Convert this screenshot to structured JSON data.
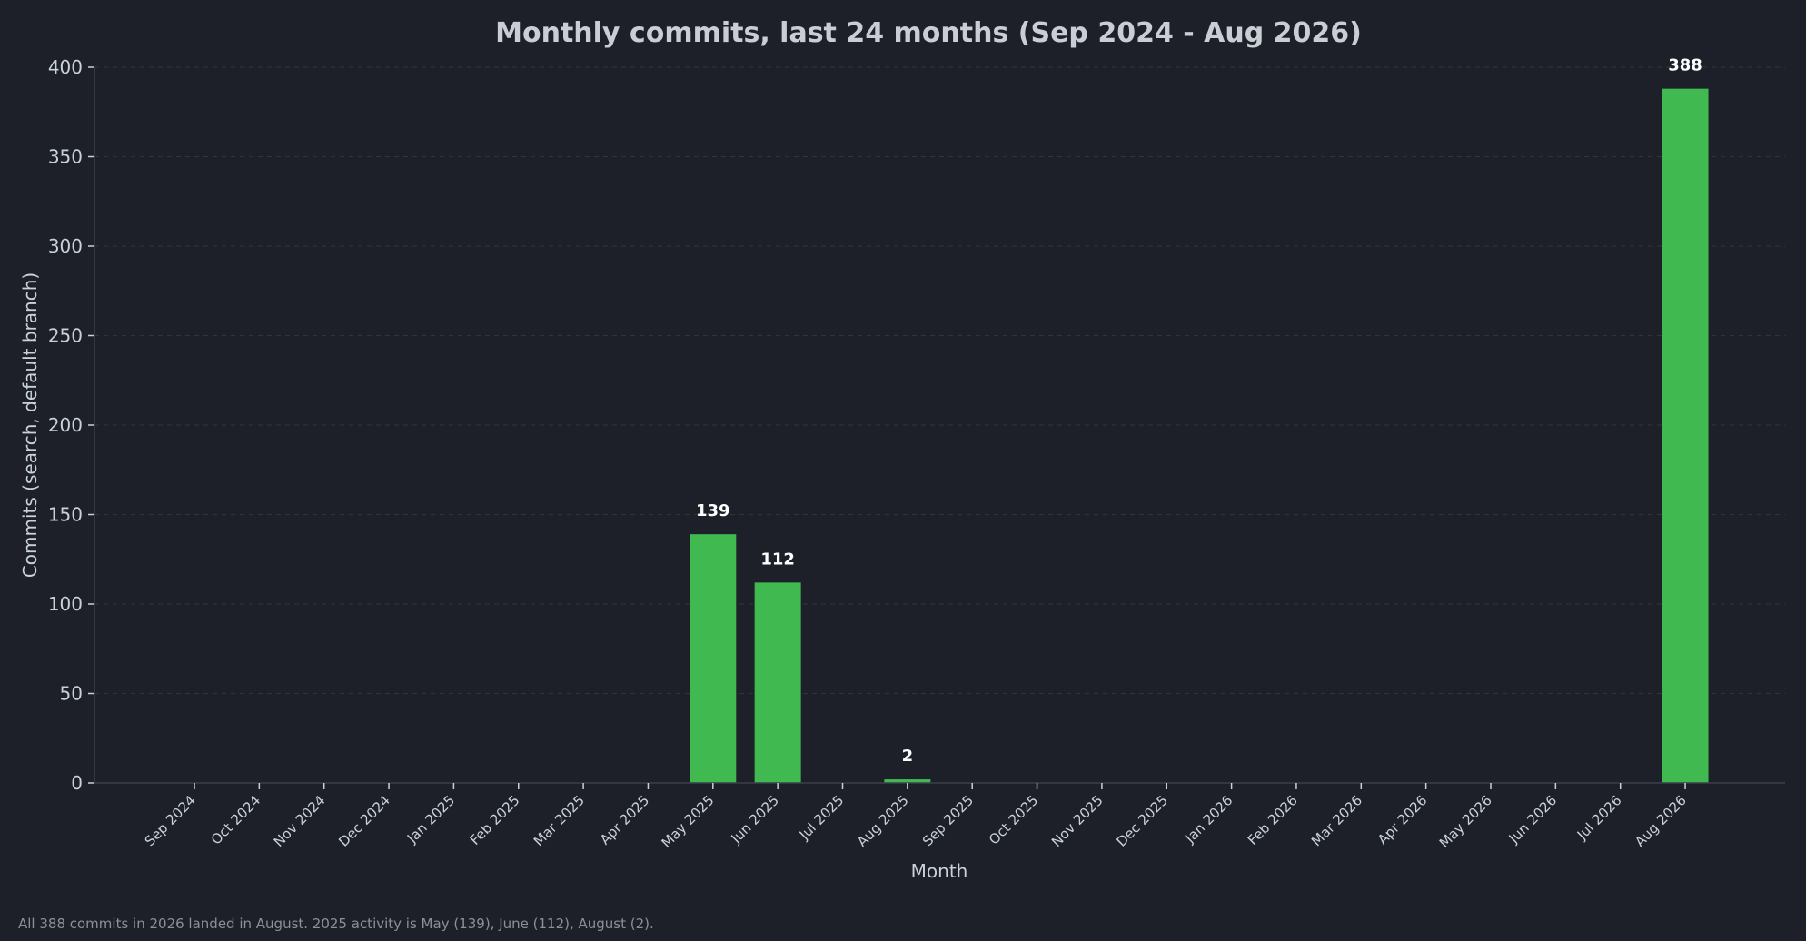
{
  "chart_data": {
    "type": "bar",
    "title": "Monthly commits, last 24 months (Sep 2024 - Aug 2026)",
    "xlabel": "Month",
    "ylabel": "Commits (search, default branch)",
    "categories": [
      "Sep 2024",
      "Oct 2024",
      "Nov 2024",
      "Dec 2024",
      "Jan 2025",
      "Feb 2025",
      "Mar 2025",
      "Apr 2025",
      "May 2025",
      "Jun 2025",
      "Jul 2025",
      "Aug 2025",
      "Sep 2025",
      "Oct 2025",
      "Nov 2025",
      "Dec 2025",
      "Jan 2026",
      "Feb 2026",
      "Mar 2026",
      "Apr 2026",
      "May 2026",
      "Jun 2026",
      "Jul 2026",
      "Aug 2026"
    ],
    "values": [
      0,
      0,
      0,
      0,
      0,
      0,
      0,
      0,
      139,
      112,
      0,
      2,
      0,
      0,
      0,
      0,
      0,
      0,
      0,
      0,
      0,
      0,
      0,
      388
    ],
    "ylim": [
      0,
      400
    ],
    "yticks": [
      0,
      50,
      100,
      150,
      200,
      250,
      300,
      350,
      400
    ],
    "grid": "y-dashed",
    "data_labels": "nonzero bars only",
    "colors": {
      "background": "#1d2029",
      "bar": "#3fb950",
      "text": "#c9d1d9",
      "title": "#c9cdd4",
      "axis": "#3a3f4b",
      "grid": "#30343d",
      "data_label": "#ffffff"
    }
  },
  "footnote": "All 388 commits in 2026 landed in August. 2025 activity is May (139), June (112), August (2)."
}
